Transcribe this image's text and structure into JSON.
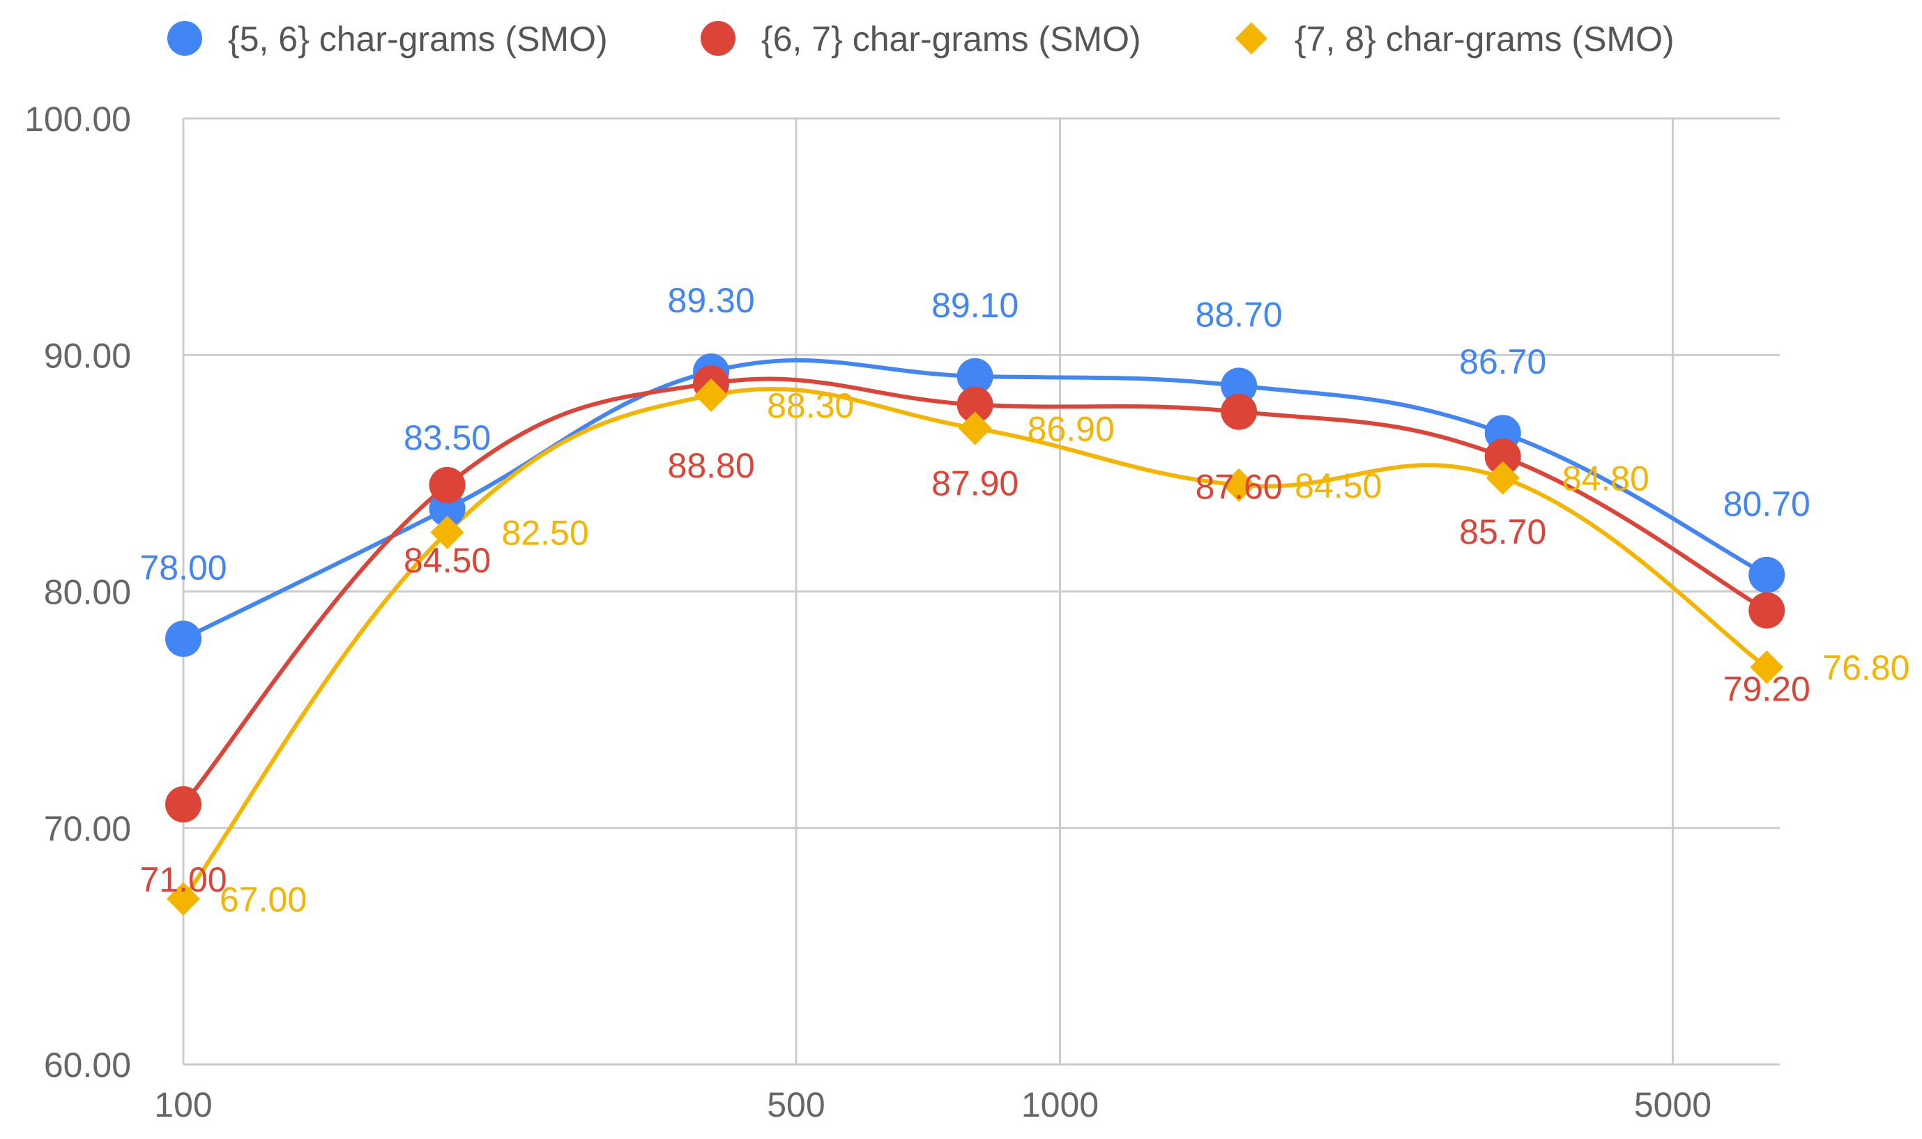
{
  "chart_data": {
    "type": "line",
    "x_scale": "log",
    "x": [
      100,
      200,
      400,
      800,
      1600,
      3200,
      6400
    ],
    "xticks": [
      100,
      500,
      1000,
      5000
    ],
    "xtick_labels": [
      "100",
      "500",
      "1000",
      "5000"
    ],
    "ylim": [
      60,
      100
    ],
    "yticks": [
      60,
      70,
      80,
      90,
      100
    ],
    "ytick_labels": [
      "60.00",
      "70.00",
      "80.00",
      "90.00",
      "100.00"
    ],
    "grid": true,
    "legend_position": "top",
    "series": [
      {
        "name": "{5, 6} char-grams (SMO)",
        "marker": "circle",
        "color": "#4285f4",
        "values": [
          78.0,
          83.5,
          89.3,
          89.1,
          88.7,
          86.7,
          80.7
        ],
        "labels": [
          "78.00",
          "83.50",
          "89.30",
          "89.10",
          "88.70",
          "86.70",
          "80.70"
        ]
      },
      {
        "name": "{6, 7} char-grams (SMO)",
        "marker": "circle",
        "color": "#db4437",
        "values": [
          71.0,
          84.5,
          88.8,
          87.9,
          87.6,
          85.7,
          79.2
        ],
        "labels": [
          "71.00",
          "84.50",
          "88.80",
          "87.90",
          "87.60",
          "85.70",
          "79.20"
        ]
      },
      {
        "name": "{7, 8} char-grams (SMO)",
        "marker": "diamond",
        "color": "#f4b400",
        "values": [
          67.0,
          82.5,
          88.3,
          86.9,
          84.5,
          84.8,
          76.8
        ],
        "labels": [
          "67.00",
          "82.50",
          "88.30",
          "86.90",
          "84.50",
          "84.80",
          "76.80"
        ]
      }
    ]
  }
}
